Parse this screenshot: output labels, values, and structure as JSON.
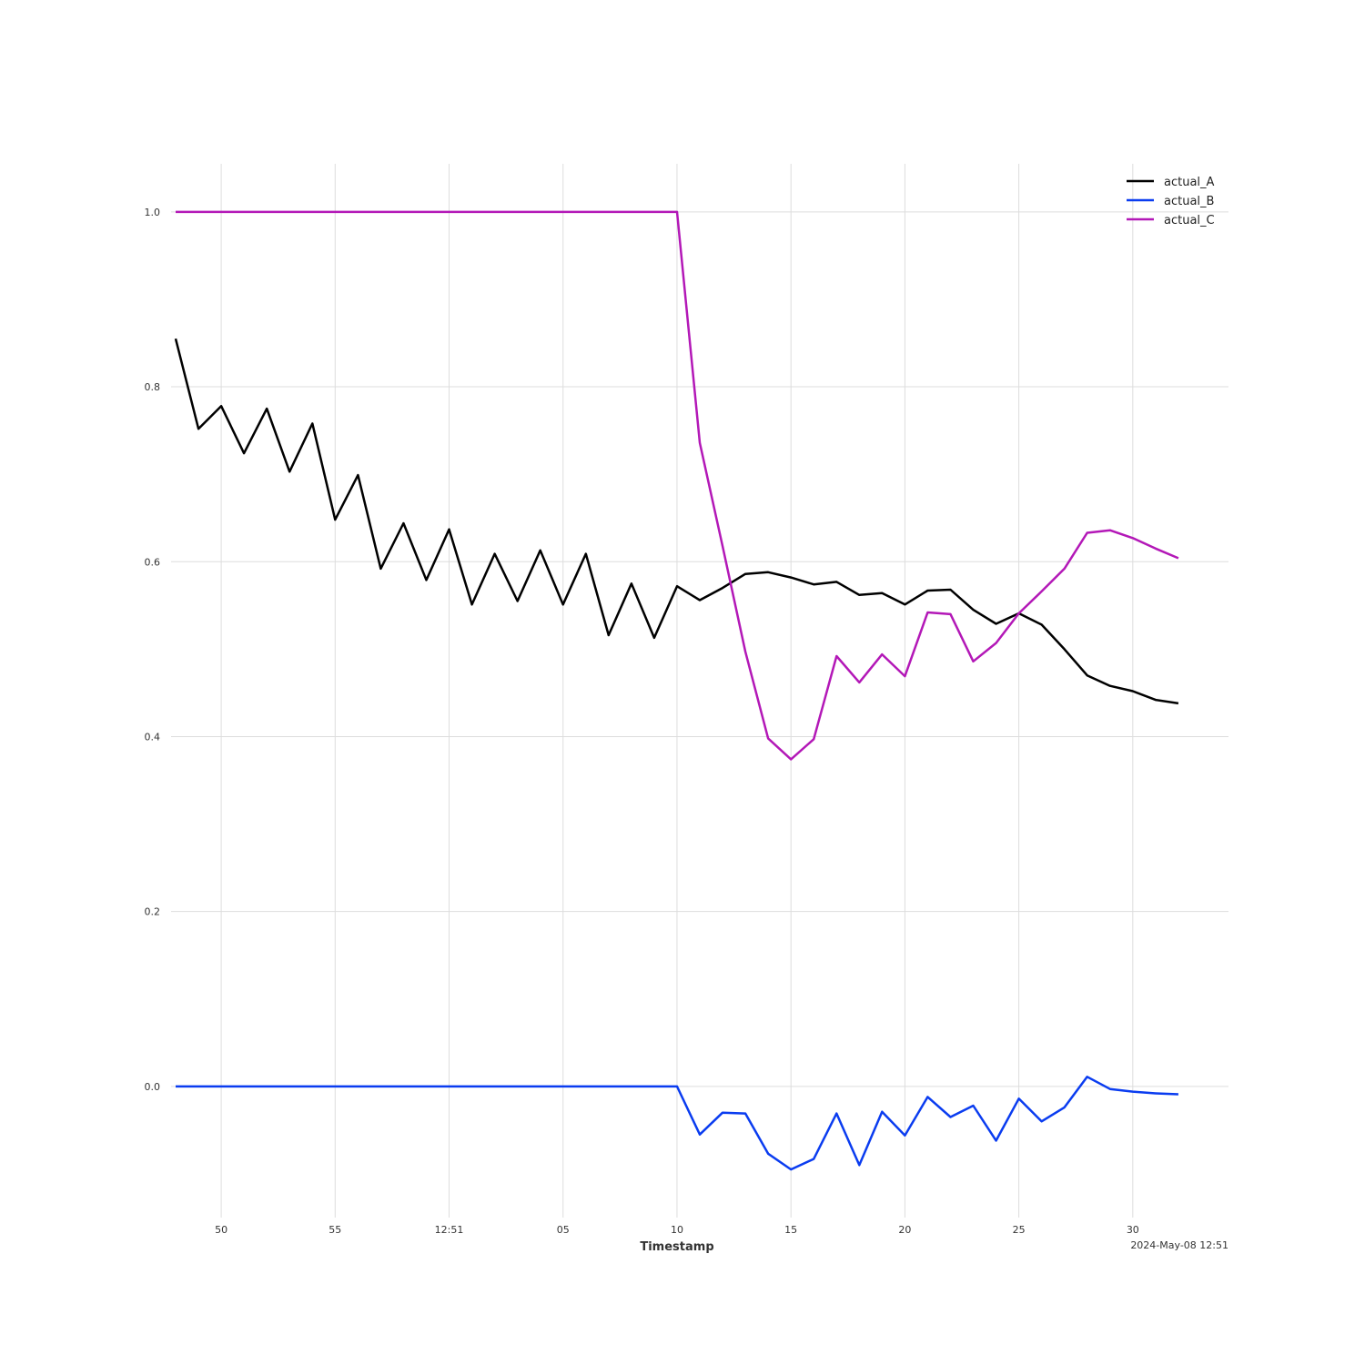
{
  "chart_data": {
    "type": "line",
    "title": "",
    "xlabel": "Timestamp",
    "ylabel": "",
    "x_offset_label": "2024-May-08 12:51",
    "grid": true,
    "legend_position": "top-right",
    "x_range": [
      47.8,
      94.2
    ],
    "ylim": [
      -0.15,
      1.055
    ],
    "x_ticks": [
      {
        "x": 50,
        "label": "50"
      },
      {
        "x": 55,
        "label": "55"
      },
      {
        "x": 60,
        "label": "12:51"
      },
      {
        "x": 65,
        "label": "05"
      },
      {
        "x": 70,
        "label": "10"
      },
      {
        "x": 75,
        "label": "15"
      },
      {
        "x": 80,
        "label": "20"
      },
      {
        "x": 85,
        "label": "25"
      },
      {
        "x": 90,
        "label": "30"
      }
    ],
    "y_ticks": [
      {
        "y": 0.0,
        "label": "0.0"
      },
      {
        "y": 0.2,
        "label": "0.2"
      },
      {
        "y": 0.4,
        "label": "0.4"
      },
      {
        "y": 0.6,
        "label": "0.6"
      },
      {
        "y": 0.8,
        "label": "0.8"
      },
      {
        "y": 1.0,
        "label": "1.0"
      }
    ],
    "x": [
      48,
      49,
      50,
      51,
      52,
      53,
      54,
      55,
      56,
      57,
      58,
      59,
      60,
      61,
      62,
      63,
      64,
      65,
      66,
      67,
      68,
      69,
      70,
      71,
      72,
      73,
      74,
      75,
      76,
      77,
      78,
      79,
      80,
      81,
      82,
      83,
      84,
      85,
      86,
      87,
      88,
      89,
      90,
      91,
      92
    ],
    "series": [
      {
        "name": "actual_A",
        "color": "#000000",
        "values": [
          0.855,
          0.752,
          0.778,
          0.724,
          0.775,
          0.703,
          0.758,
          0.648,
          0.699,
          0.592,
          0.644,
          0.579,
          0.637,
          0.551,
          0.609,
          0.555,
          0.613,
          0.551,
          0.609,
          0.516,
          0.575,
          0.513,
          0.572,
          0.556,
          0.57,
          0.586,
          0.588,
          0.582,
          0.574,
          0.577,
          0.562,
          0.564,
          0.551,
          0.567,
          0.568,
          0.545,
          0.529,
          0.541,
          0.528,
          0.5,
          0.47,
          0.458,
          0.452,
          0.442,
          0.438
        ]
      },
      {
        "name": "actual_B",
        "color": "#0a3cf0",
        "values": [
          0.0,
          0.0,
          0.0,
          0.0,
          0.0,
          0.0,
          0.0,
          0.0,
          0.0,
          0.0,
          0.0,
          0.0,
          0.0,
          0.0,
          0.0,
          0.0,
          0.0,
          0.0,
          0.0,
          0.0,
          0.0,
          0.0,
          0.0,
          -0.055,
          -0.03,
          -0.031,
          -0.077,
          -0.095,
          -0.083,
          -0.031,
          -0.09,
          -0.029,
          -0.056,
          -0.012,
          -0.035,
          -0.022,
          -0.062,
          -0.014,
          -0.04,
          -0.024,
          0.011,
          -0.003,
          -0.006,
          -0.008,
          -0.009
        ]
      },
      {
        "name": "actual_C",
        "color": "#b318b7",
        "values": [
          1.0,
          1.0,
          1.0,
          1.0,
          1.0,
          1.0,
          1.0,
          1.0,
          1.0,
          1.0,
          1.0,
          1.0,
          1.0,
          1.0,
          1.0,
          1.0,
          1.0,
          1.0,
          1.0,
          1.0,
          1.0,
          1.0,
          1.0,
          0.736,
          0.618,
          0.497,
          0.398,
          0.374,
          0.397,
          0.492,
          0.462,
          0.494,
          0.469,
          0.542,
          0.54,
          0.486,
          0.507,
          0.541,
          0.566,
          0.592,
          0.633,
          0.636,
          0.627,
          0.615,
          0.604
        ]
      }
    ]
  }
}
